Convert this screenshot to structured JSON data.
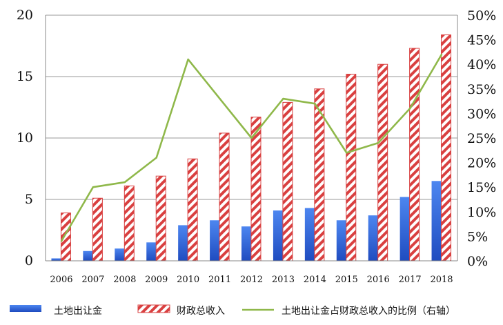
{
  "chart_data": {
    "type": "bar",
    "categories": [
      "2006",
      "2007",
      "2008",
      "2009",
      "2010",
      "2011",
      "2012",
      "2013",
      "2014",
      "2015",
      "2016",
      "2017",
      "2018"
    ],
    "series": [
      {
        "name": "土地出让金",
        "kind": "bar",
        "axis": "left",
        "color": "#2f63d8",
        "values": [
          0.2,
          0.8,
          1.0,
          1.5,
          2.9,
          3.3,
          2.8,
          4.1,
          4.3,
          3.3,
          3.7,
          5.2,
          6.5
        ]
      },
      {
        "name": "财政总收入",
        "kind": "bar-hatched",
        "axis": "left",
        "color": "#d94040",
        "values": [
          3.9,
          5.1,
          6.1,
          6.9,
          8.3,
          10.4,
          11.7,
          12.9,
          14.0,
          15.2,
          16.0,
          17.3,
          18.4
        ]
      },
      {
        "name": "土地出让金占财政总收入的比例（右轴）",
        "kind": "line",
        "axis": "right",
        "color": "#8fb84a",
        "values": [
          0.04,
          0.15,
          0.16,
          0.21,
          0.41,
          0.33,
          0.25,
          0.33,
          0.32,
          0.22,
          0.24,
          0.31,
          0.42
        ]
      }
    ],
    "y_left": {
      "min": 0,
      "max": 20,
      "ticks": [
        "0",
        "5",
        "10",
        "15",
        "20"
      ],
      "tick_values": [
        0,
        5,
        10,
        15,
        20
      ]
    },
    "y_right": {
      "min": 0,
      "max": 0.5,
      "ticks": [
        "0%",
        "5%",
        "10%",
        "15%",
        "20%",
        "25%",
        "30%",
        "35%",
        "40%",
        "45%",
        "50%"
      ],
      "tick_values": [
        0,
        0.05,
        0.1,
        0.15,
        0.2,
        0.25,
        0.3,
        0.35,
        0.4,
        0.45,
        0.5
      ]
    },
    "grid": true,
    "legend": "bottom"
  }
}
